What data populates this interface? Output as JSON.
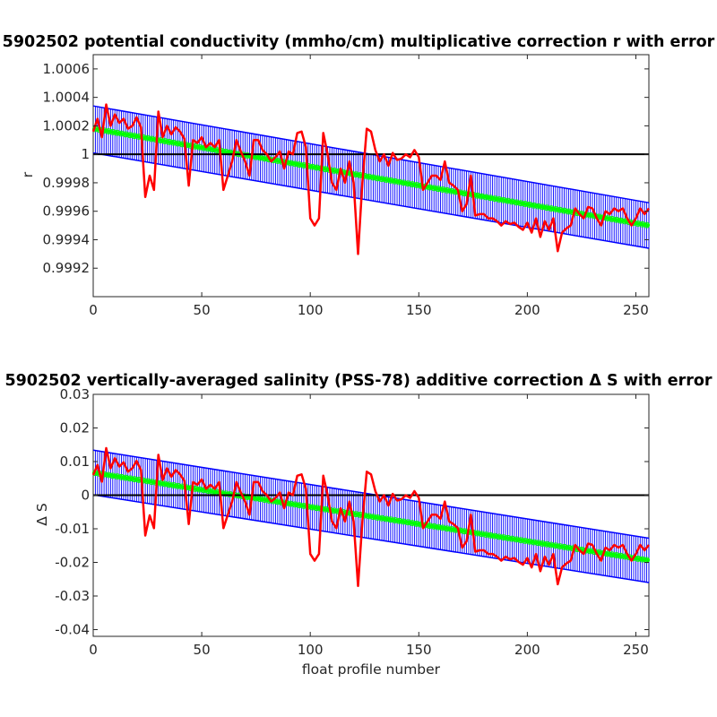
{
  "chart_data": [
    {
      "type": "line",
      "title": "5902502 potential conductivity (mmho/cm) multiplicative correction r with error",
      "xlabel": "",
      "ylabel": "r",
      "xlim": [
        0,
        256
      ],
      "ylim": [
        0.999,
        1.0007
      ],
      "xticks": [
        0,
        50,
        100,
        150,
        200,
        250
      ],
      "xtick_labels": [
        "0",
        "50",
        "100",
        "150",
        "200",
        "250"
      ],
      "yticks": [
        0.9992,
        0.9994,
        0.9996,
        0.9998,
        1.0,
        1.0002,
        1.0004,
        1.0006
      ],
      "ytick_labels": [
        "0.9992",
        "0.9994",
        "0.9996",
        "0.9998",
        "1",
        "1.0002",
        "1.0004",
        "1.0006"
      ],
      "reference": 1.0,
      "fit": {
        "x": [
          0,
          256
        ],
        "y": [
          1.00018,
          0.9995
        ]
      },
      "error_band": {
        "x": [
          0,
          256
        ],
        "lower": [
          1.00001,
          0.99934
        ],
        "upper": [
          1.00034,
          0.99966
        ]
      },
      "series": [
        {
          "color": "#ff0000",
          "x": [
            0,
            2,
            4,
            6,
            8,
            10,
            12,
            14,
            16,
            18,
            20,
            22,
            24,
            26,
            28,
            30,
            32,
            34,
            36,
            38,
            40,
            42,
            44,
            46,
            48,
            50,
            52,
            54,
            56,
            58,
            60,
            62,
            64,
            66,
            68,
            70,
            72,
            74,
            76,
            78,
            80,
            82,
            84,
            86,
            88,
            90,
            92,
            94,
            96,
            98,
            100,
            102,
            104,
            106,
            108,
            110,
            112,
            114,
            116,
            118,
            120,
            122,
            124,
            126,
            128,
            130,
            132,
            134,
            136,
            138,
            140,
            142,
            144,
            146,
            148,
            150,
            152,
            154,
            156,
            158,
            160,
            162,
            164,
            166,
            168,
            170,
            172,
            174,
            176,
            178,
            180,
            182,
            184,
            186,
            188,
            190,
            192,
            194,
            196,
            198,
            200,
            202,
            204,
            206,
            208,
            210,
            212,
            214,
            216,
            218,
            220,
            222,
            224,
            226,
            228,
            230,
            232,
            234,
            236,
            238,
            240,
            242,
            244,
            246,
            248,
            250,
            252,
            254,
            256
          ],
          "values": [
            1.00016,
            1.00025,
            1.00012,
            1.00035,
            1.0002,
            1.00028,
            1.00022,
            1.00025,
            1.00018,
            1.0002,
            1.00026,
            1.00019,
            0.9997,
            0.99985,
            0.99975,
            1.0003,
            1.00012,
            1.0002,
            1.00014,
            1.00019,
            1.00016,
            1.00011,
            0.99978,
            1.0001,
            1.00008,
            1.00012,
            1.00005,
            1.00008,
            1.00005,
            1.0001,
            0.99975,
            0.99985,
            0.99995,
            1.0001,
            1.00002,
            0.99995,
            0.99985,
            1.0001,
            1.0001,
            1.00003,
            1.0,
            0.99995,
            0.99998,
            1.00002,
            0.9999,
            1.00002,
            1.0,
            1.00015,
            1.00016,
            1.00005,
            0.99955,
            0.9995,
            0.99955,
            1.00015,
            1.0,
            0.9998,
            0.99975,
            0.9999,
            0.9998,
            0.99995,
            0.9998,
            0.9993,
            0.9998,
            1.00018,
            1.00016,
            1.00003,
            0.99995,
            1.0,
            0.99992,
            1.00001,
            0.99996,
            0.99997,
            1.0,
            0.99998,
            1.00003,
            0.99998,
            0.99975,
            0.9998,
            0.99985,
            0.99985,
            0.99982,
            0.99995,
            0.9998,
            0.99978,
            0.99975,
            0.9996,
            0.99965,
            0.99985,
            0.99957,
            0.99958,
            0.99958,
            0.99955,
            0.99955,
            0.99953,
            0.9995,
            0.99953,
            0.99951,
            0.99952,
            0.99949,
            0.99947,
            0.99952,
            0.99945,
            0.99955,
            0.99942,
            0.99953,
            0.99947,
            0.99955,
            0.99932,
            0.99945,
            0.99948,
            0.9995,
            0.99962,
            0.99958,
            0.99955,
            0.99963,
            0.99962,
            0.99955,
            0.9995,
            0.9996,
            0.99958,
            0.99962,
            0.9996,
            0.99962,
            0.99955,
            0.9995,
            0.99955,
            0.99962,
            0.99958,
            0.99962
          ]
        }
      ]
    },
    {
      "type": "line",
      "title": "5902502 vertically-averaged salinity (PSS-78) additive correction Δ S with error",
      "xlabel": "float profile number",
      "ylabel": "Δ S",
      "xlim": [
        0,
        256
      ],
      "ylim": [
        -0.042,
        0.03
      ],
      "xticks": [
        0,
        50,
        100,
        150,
        200,
        250
      ],
      "xtick_labels": [
        "0",
        "50",
        "100",
        "150",
        "200",
        "250"
      ],
      "yticks": [
        -0.04,
        -0.03,
        -0.02,
        -0.01,
        0,
        0.01,
        0.02,
        0.03
      ],
      "ytick_labels": [
        "-0.04",
        "-0.03",
        "-0.02",
        "-0.01",
        "0",
        "0.01",
        "0.02",
        "0.03"
      ],
      "reference": 0,
      "fit": {
        "x": [
          0,
          256
        ],
        "y": [
          0.0067,
          -0.0194
        ]
      },
      "error_band": {
        "x": [
          0,
          256
        ],
        "lower": [
          0.0001,
          -0.026
        ],
        "upper": [
          0.0134,
          -0.0128
        ]
      },
      "series": [
        {
          "color": "#ff0000",
          "x": [
            0,
            2,
            4,
            6,
            8,
            10,
            12,
            14,
            16,
            18,
            20,
            22,
            24,
            26,
            28,
            30,
            32,
            34,
            36,
            38,
            40,
            42,
            44,
            46,
            48,
            50,
            52,
            54,
            56,
            58,
            60,
            62,
            64,
            66,
            68,
            70,
            72,
            74,
            76,
            78,
            80,
            82,
            84,
            86,
            88,
            90,
            92,
            94,
            96,
            98,
            100,
            102,
            104,
            106,
            108,
            110,
            112,
            114,
            116,
            118,
            120,
            122,
            124,
            126,
            128,
            130,
            132,
            134,
            136,
            138,
            140,
            142,
            144,
            146,
            148,
            150,
            152,
            154,
            156,
            158,
            160,
            162,
            164,
            166,
            168,
            170,
            172,
            174,
            176,
            178,
            180,
            182,
            184,
            186,
            188,
            190,
            192,
            194,
            196,
            198,
            200,
            202,
            204,
            206,
            208,
            210,
            212,
            214,
            216,
            218,
            220,
            222,
            224,
            226,
            228,
            230,
            232,
            234,
            236,
            238,
            240,
            242,
            244,
            246,
            248,
            250,
            252,
            254,
            256
          ],
          "values": [
            0.006,
            0.009,
            0.004,
            0.014,
            0.008,
            0.011,
            0.0085,
            0.0098,
            0.007,
            0.008,
            0.0102,
            0.0075,
            -0.012,
            -0.006,
            -0.0098,
            0.012,
            0.0045,
            0.008,
            0.0055,
            0.0075,
            0.0062,
            0.0043,
            -0.0086,
            0.0039,
            0.0031,
            0.0047,
            0.0019,
            0.0031,
            0.0019,
            0.0039,
            -0.0098,
            -0.0058,
            -0.0019,
            0.0039,
            0.0008,
            -0.0019,
            -0.0058,
            0.0039,
            0.0039,
            0.0012,
            0.0,
            -0.0019,
            -0.0008,
            0.0008,
            -0.0039,
            0.0008,
            0.0,
            0.0058,
            0.0062,
            0.0019,
            -0.0175,
            -0.0195,
            -0.0175,
            0.0058,
            0.0,
            -0.0078,
            -0.0098,
            -0.0039,
            -0.0078,
            -0.0019,
            -0.0078,
            -0.027,
            -0.0078,
            0.007,
            0.0062,
            0.0012,
            -0.0019,
            0.0,
            -0.0031,
            0.0004,
            -0.0016,
            -0.0012,
            0.0,
            -0.0008,
            0.0012,
            -0.0008,
            -0.0098,
            -0.0078,
            -0.0058,
            -0.0058,
            -0.007,
            -0.0019,
            -0.0078,
            -0.0086,
            -0.0098,
            -0.0156,
            -0.0137,
            -0.0058,
            -0.0168,
            -0.0164,
            -0.0164,
            -0.0175,
            -0.0175,
            -0.0183,
            -0.0195,
            -0.0183,
            -0.0191,
            -0.0187,
            -0.0199,
            -0.0207,
            -0.0187,
            -0.0215,
            -0.0175,
            -0.0226,
            -0.0183,
            -0.0207,
            -0.0175,
            -0.0265,
            -0.0215,
            -0.0203,
            -0.0195,
            -0.0148,
            -0.0164,
            -0.0175,
            -0.0144,
            -0.0148,
            -0.0175,
            -0.0195,
            -0.0156,
            -0.0164,
            -0.0148,
            -0.0156,
            -0.0148,
            -0.0175,
            -0.0195,
            -0.0175,
            -0.0148,
            -0.0164,
            -0.0148
          ]
        }
      ]
    }
  ],
  "colors": {
    "data_line": "#ff0000",
    "fit_line": "#00ff00",
    "error_bars": "#0000ff",
    "reference_line": "#000000",
    "axes": "#262626"
  }
}
